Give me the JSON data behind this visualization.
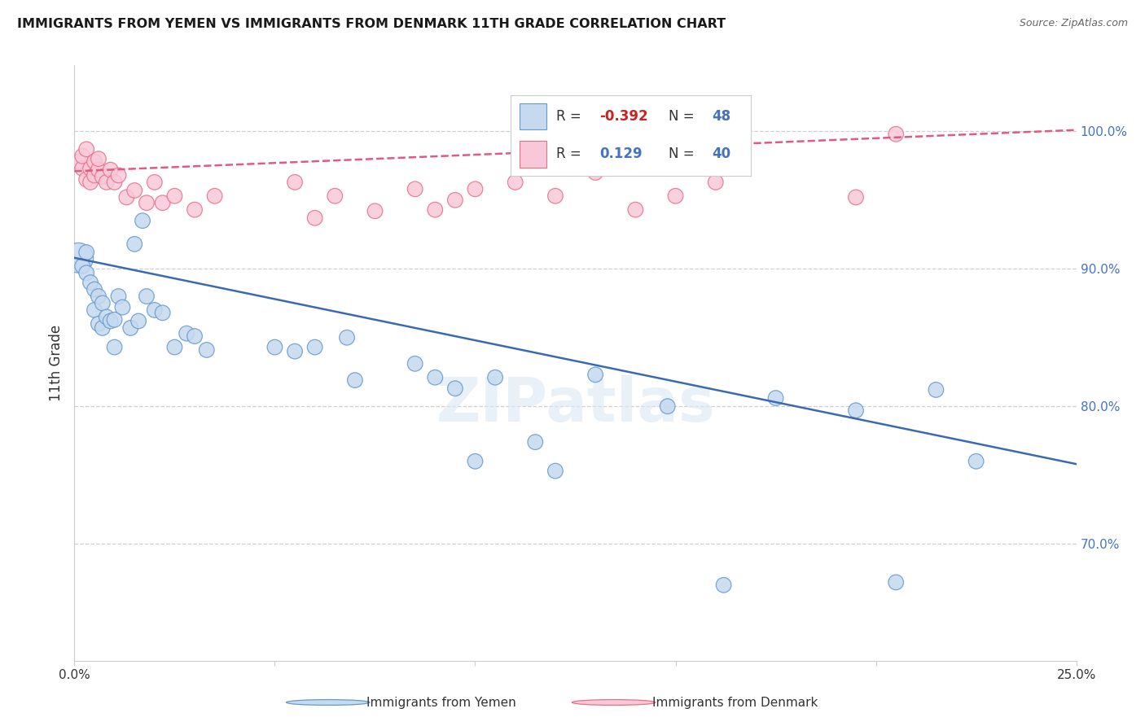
{
  "title": "IMMIGRANTS FROM YEMEN VS IMMIGRANTS FROM DENMARK 11TH GRADE CORRELATION CHART",
  "source": "Source: ZipAtlas.com",
  "ylabel": "11th Grade",
  "ytick_labels": [
    "70.0%",
    "80.0%",
    "90.0%",
    "100.0%"
  ],
  "ytick_vals": [
    0.7,
    0.8,
    0.9,
    1.0
  ],
  "xlim": [
    0.0,
    0.25
  ],
  "ylim": [
    0.615,
    1.048
  ],
  "r_yemen": -0.392,
  "n_yemen": 48,
  "r_denmark": 0.129,
  "n_denmark": 40,
  "color_yemen_fill": "#c5d9ef",
  "color_yemen_edge": "#6699cc",
  "color_denmark_fill": "#f8c8d8",
  "color_denmark_edge": "#e8708a",
  "color_yemen_line": "#3a6bb0",
  "color_denmark_line": "#e05a82",
  "watermark": "ZIPatlas",
  "dot_size": 180,
  "large_dot_size": 700,
  "yemen_x": [
    0.001,
    0.002,
    0.003,
    0.003,
    0.004,
    0.005,
    0.005,
    0.006,
    0.006,
    0.007,
    0.007,
    0.008,
    0.009,
    0.01,
    0.01,
    0.011,
    0.012,
    0.014,
    0.015,
    0.016,
    0.017,
    0.018,
    0.02,
    0.022,
    0.025,
    0.028,
    0.03,
    0.033,
    0.05,
    0.055,
    0.06,
    0.068,
    0.07,
    0.085,
    0.09,
    0.095,
    0.1,
    0.105,
    0.115,
    0.12,
    0.13,
    0.148,
    0.162,
    0.175,
    0.195,
    0.205,
    0.215,
    0.225
  ],
  "yemen_y": [
    0.908,
    0.902,
    0.897,
    0.912,
    0.89,
    0.885,
    0.87,
    0.88,
    0.86,
    0.857,
    0.875,
    0.865,
    0.862,
    0.863,
    0.843,
    0.88,
    0.872,
    0.857,
    0.918,
    0.862,
    0.935,
    0.88,
    0.87,
    0.868,
    0.843,
    0.853,
    0.851,
    0.841,
    0.843,
    0.84,
    0.843,
    0.85,
    0.819,
    0.831,
    0.821,
    0.813,
    0.76,
    0.821,
    0.774,
    0.753,
    0.823,
    0.8,
    0.67,
    0.806,
    0.797,
    0.672,
    0.812,
    0.76
  ],
  "denmark_x": [
    0.001,
    0.002,
    0.002,
    0.003,
    0.003,
    0.004,
    0.004,
    0.005,
    0.005,
    0.006,
    0.006,
    0.007,
    0.008,
    0.009,
    0.01,
    0.011,
    0.013,
    0.015,
    0.018,
    0.02,
    0.022,
    0.025,
    0.03,
    0.035,
    0.055,
    0.06,
    0.065,
    0.075,
    0.085,
    0.09,
    0.095,
    0.1,
    0.11,
    0.12,
    0.13,
    0.14,
    0.15,
    0.16,
    0.195,
    0.205
  ],
  "denmark_y": [
    0.978,
    0.973,
    0.982,
    0.965,
    0.987,
    0.973,
    0.963,
    0.978,
    0.968,
    0.972,
    0.98,
    0.967,
    0.963,
    0.972,
    0.963,
    0.968,
    0.952,
    0.957,
    0.948,
    0.963,
    0.948,
    0.953,
    0.943,
    0.953,
    0.963,
    0.937,
    0.953,
    0.942,
    0.958,
    0.943,
    0.95,
    0.958,
    0.963,
    0.953,
    0.97,
    0.943,
    0.953,
    0.963,
    0.952,
    0.998
  ],
  "large_denmark_idx": [],
  "large_yemen_idx": [
    0
  ],
  "yemen_line_y0": 0.908,
  "yemen_line_y1": 0.758,
  "denmark_line_y0": 0.971,
  "denmark_line_y1": 1.001
}
